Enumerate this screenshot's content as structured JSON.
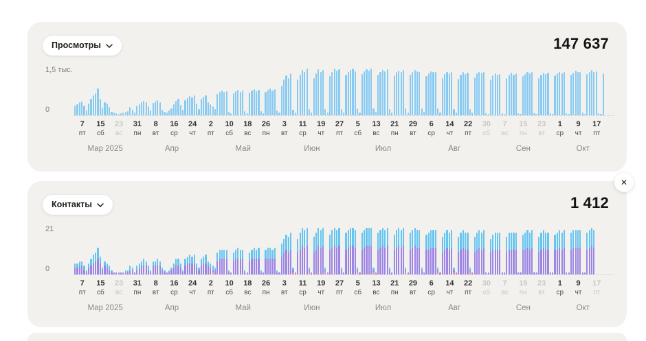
{
  "close_button": {
    "label": "✕"
  },
  "chart_data": [
    {
      "id": "views",
      "type": "bar",
      "metric_label": "Просмотры",
      "total_label": "147 637",
      "y_axis": {
        "max_label": "1,5 тыс.",
        "zero_label": "0",
        "max": 1500
      },
      "bar_color": "#87CAF3",
      "values": [
        320,
        360,
        410,
        440,
        300,
        160,
        380,
        520,
        640,
        700,
        860,
        540,
        240,
        420,
        380,
        260,
        120,
        90,
        70,
        40,
        60,
        90,
        110,
        140,
        260,
        180,
        90,
        310,
        360,
        420,
        470,
        430,
        280,
        150,
        390,
        450,
        480,
        420,
        180,
        120,
        80,
        160,
        220,
        350,
        470,
        520,
        330,
        170,
        480,
        560,
        610,
        580,
        640,
        380,
        190,
        520,
        590,
        630,
        410,
        360,
        280,
        200,
        680,
        750,
        800,
        740,
        780,
        120,
        60,
        700,
        770,
        820,
        760,
        800,
        130,
        70,
        720,
        790,
        840,
        780,
        820,
        140,
        70,
        740,
        810,
        860,
        800,
        830,
        150,
        80,
        950,
        1150,
        1280,
        1200,
        1350,
        180,
        80,
        1150,
        1300,
        1450,
        1380,
        1500,
        200,
        90,
        1200,
        1350,
        1480,
        1400,
        1460,
        190,
        80,
        1250,
        1400,
        1500,
        1430,
        1480,
        200,
        90,
        1300,
        1380,
        1450,
        1500,
        1420,
        210,
        90,
        1320,
        1420,
        1480,
        1440,
        1500,
        220,
        100,
        1300,
        1400,
        1460,
        1410,
        1470,
        200,
        90,
        1280,
        1380,
        1440,
        1400,
        1450,
        210,
        90,
        1310,
        1400,
        1460,
        1420,
        1380,
        220,
        100,
        1250,
        1350,
        1420,
        1380,
        1400,
        210,
        90,
        1200,
        1320,
        1400,
        1350,
        1380,
        200,
        80,
        1180,
        1300,
        1380,
        1330,
        1360,
        190,
        80,
        1220,
        1340,
        1400,
        1360,
        1390,
        60,
        40,
        1150,
        1280,
        1350,
        1300,
        1320,
        60,
        40,
        1200,
        1300,
        1360,
        1310,
        1340,
        70,
        40,
        1250,
        1320,
        1400,
        1350,
        1380,
        60,
        50,
        1200,
        1310,
        1370,
        1330,
        1360,
        70,
        40,
        1280,
        1350,
        1380,
        1340,
        1390,
        70,
        50,
        1300,
        1370,
        1430,
        1380,
        1400,
        80,
        50,
        1320,
        1390,
        1450,
        1400,
        1420,
        70,
        40,
        1340
      ],
      "ticks": [
        {
          "d": "7",
          "w": "пт",
          "i": 3
        },
        {
          "d": "15",
          "w": "сб",
          "i": 11
        },
        {
          "d": "23",
          "w": "вс",
          "i": 19,
          "muted": true
        },
        {
          "d": "31",
          "w": "пн",
          "i": 27
        },
        {
          "d": "8",
          "w": "вт",
          "i": 35
        },
        {
          "d": "16",
          "w": "ср",
          "i": 43
        },
        {
          "d": "24",
          "w": "чт",
          "i": 51
        },
        {
          "d": "2",
          "w": "пт",
          "i": 59
        },
        {
          "d": "10",
          "w": "сб",
          "i": 67
        },
        {
          "d": "18",
          "w": "вс",
          "i": 75
        },
        {
          "d": "26",
          "w": "пн",
          "i": 83
        },
        {
          "d": "3",
          "w": "вт",
          "i": 91
        },
        {
          "d": "11",
          "w": "ср",
          "i": 99
        },
        {
          "d": "19",
          "w": "чт",
          "i": 107
        },
        {
          "d": "27",
          "w": "пт",
          "i": 115
        },
        {
          "d": "5",
          "w": "сб",
          "i": 123
        },
        {
          "d": "13",
          "w": "вс",
          "i": 131
        },
        {
          "d": "21",
          "w": "пн",
          "i": 139
        },
        {
          "d": "29",
          "w": "вт",
          "i": 147
        },
        {
          "d": "6",
          "w": "ср",
          "i": 155
        },
        {
          "d": "14",
          "w": "чт",
          "i": 163
        },
        {
          "d": "22",
          "w": "пт",
          "i": 171
        },
        {
          "d": "30",
          "w": "сб",
          "i": 179,
          "muted": true
        },
        {
          "d": "7",
          "w": "вс",
          "i": 187,
          "muted": true
        },
        {
          "d": "15",
          "w": "пн",
          "i": 195,
          "muted": true
        },
        {
          "d": "23",
          "w": "вт",
          "i": 203,
          "muted": true
        },
        {
          "d": "1",
          "w": "ср",
          "i": 211
        },
        {
          "d": "9",
          "w": "чт",
          "i": 219
        },
        {
          "d": "17",
          "w": "пт",
          "i": 227
        }
      ],
      "months": [
        {
          "label": "Мар 2025",
          "i": 13
        },
        {
          "label": "Апр",
          "i": 42
        },
        {
          "label": "Май",
          "i": 73
        },
        {
          "label": "Июн",
          "i": 103
        },
        {
          "label": "Июл",
          "i": 134
        },
        {
          "label": "Авг",
          "i": 165
        },
        {
          "label": "Сен",
          "i": 195
        },
        {
          "label": "Окт",
          "i": 221
        }
      ]
    },
    {
      "id": "contacts",
      "type": "stacked_bar",
      "metric_label": "Контакты",
      "total_label": "1 412",
      "y_axis": {
        "max_label": "21",
        "zero_label": "0",
        "max": 21
      },
      "series": [
        {
          "name": "top-blue",
          "color": "#66C5F0",
          "values": [
            2,
            2,
            2,
            2,
            2,
            1,
            2,
            3,
            4,
            4,
            5,
            3,
            1,
            2,
            2,
            2,
            1,
            0,
            0,
            0,
            0,
            0,
            1,
            1,
            2,
            1,
            0,
            2,
            2,
            2,
            3,
            2,
            2,
            1,
            2,
            2,
            3,
            2,
            1,
            1,
            0,
            1,
            1,
            2,
            3,
            3,
            2,
            1,
            3,
            3,
            4,
            3,
            4,
            2,
            1,
            3,
            3,
            4,
            2,
            2,
            2,
            1,
            4,
            4,
            4,
            4,
            4,
            1,
            0,
            4,
            4,
            5,
            4,
            4,
            1,
            0,
            4,
            4,
            5,
            4,
            5,
            1,
            0,
            4,
            5,
            5,
            4,
            5,
            1,
            0,
            6,
            6,
            7,
            7,
            8,
            1,
            0,
            6,
            8,
            8,
            8,
            8,
            1,
            0,
            7,
            8,
            8,
            8,
            8,
            1,
            0,
            7,
            8,
            8,
            8,
            8,
            1,
            0,
            8,
            8,
            8,
            8,
            8,
            1,
            0,
            8,
            8,
            8,
            8,
            8,
            1,
            0,
            8,
            8,
            8,
            8,
            8,
            1,
            0,
            7,
            8,
            8,
            8,
            8,
            1,
            0,
            8,
            8,
            8,
            8,
            8,
            1,
            0,
            7,
            8,
            8,
            8,
            8,
            1,
            0,
            7,
            8,
            8,
            8,
            8,
            1,
            0,
            7,
            8,
            8,
            8,
            8,
            1,
            0,
            7,
            8,
            8,
            8,
            8,
            0,
            0,
            6,
            7,
            8,
            8,
            8,
            0,
            0,
            7,
            8,
            8,
            8,
            8,
            0,
            0,
            7,
            8,
            8,
            8,
            8,
            0,
            0,
            7,
            8,
            8,
            8,
            8,
            0,
            0,
            7,
            8,
            8,
            8,
            8,
            0,
            0,
            8,
            8,
            8,
            8,
            8,
            0,
            0,
            8,
            8,
            8,
            8,
            0,
            0,
            0,
            0
          ]
        },
        {
          "name": "bottom-purple",
          "color": "#9D85E5",
          "values": [
            3,
            3,
            4,
            4,
            2,
            1,
            3,
            4,
            5,
            6,
            7,
            5,
            2,
            4,
            3,
            2,
            1,
            1,
            1,
            1,
            1,
            1,
            1,
            1,
            2,
            2,
            1,
            2,
            3,
            4,
            4,
            4,
            2,
            1,
            4,
            4,
            4,
            4,
            2,
            1,
            1,
            1,
            2,
            3,
            4,
            4,
            3,
            1,
            4,
            5,
            5,
            5,
            5,
            3,
            2,
            4,
            5,
            5,
            4,
            3,
            2,
            2,
            6,
            7,
            7,
            7,
            7,
            1,
            1,
            6,
            7,
            7,
            7,
            7,
            1,
            1,
            6,
            7,
            7,
            7,
            7,
            1,
            1,
            7,
            7,
            7,
            7,
            7,
            1,
            1,
            8,
            10,
            11,
            10,
            11,
            2,
            1,
            10,
            11,
            13,
            12,
            13,
            2,
            1,
            10,
            11,
            13,
            12,
            13,
            2,
            1,
            11,
            12,
            13,
            12,
            13,
            2,
            1,
            11,
            12,
            13,
            13,
            12,
            2,
            1,
            11,
            12,
            13,
            13,
            13,
            2,
            1,
            11,
            12,
            13,
            12,
            13,
            2,
            1,
            11,
            12,
            13,
            12,
            13,
            2,
            1,
            11,
            12,
            13,
            12,
            12,
            2,
            1,
            11,
            11,
            12,
            12,
            12,
            2,
            1,
            10,
            11,
            12,
            11,
            12,
            2,
            1,
            10,
            11,
            12,
            11,
            11,
            2,
            1,
            10,
            11,
            12,
            11,
            12,
            1,
            1,
            10,
            11,
            11,
            11,
            11,
            1,
            1,
            10,
            11,
            11,
            11,
            11,
            1,
            1,
            11,
            11,
            12,
            11,
            12,
            1,
            1,
            10,
            11,
            12,
            11,
            11,
            1,
            1,
            11,
            11,
            12,
            11,
            12,
            1,
            1,
            11,
            12,
            12,
            12,
            12,
            1,
            1,
            11,
            12,
            13,
            12,
            0,
            0,
            0,
            0
          ]
        }
      ],
      "accent": {
        "color": "#F2948F",
        "day_indices": [
          60,
          67,
          81,
          95,
          102,
          109,
          123,
          130,
          144,
          158,
          165,
          172
        ]
      },
      "ticks": [
        {
          "d": "7",
          "w": "пт",
          "i": 3
        },
        {
          "d": "15",
          "w": "сб",
          "i": 11
        },
        {
          "d": "23",
          "w": "вс",
          "i": 19,
          "muted": true
        },
        {
          "d": "31",
          "w": "пн",
          "i": 27
        },
        {
          "d": "8",
          "w": "вт",
          "i": 35
        },
        {
          "d": "16",
          "w": "ср",
          "i": 43
        },
        {
          "d": "24",
          "w": "чт",
          "i": 51
        },
        {
          "d": "2",
          "w": "пт",
          "i": 59
        },
        {
          "d": "10",
          "w": "сб",
          "i": 67
        },
        {
          "d": "18",
          "w": "вс",
          "i": 75
        },
        {
          "d": "26",
          "w": "пн",
          "i": 83
        },
        {
          "d": "3",
          "w": "вт",
          "i": 91
        },
        {
          "d": "11",
          "w": "ср",
          "i": 99
        },
        {
          "d": "19",
          "w": "чт",
          "i": 107
        },
        {
          "d": "27",
          "w": "пт",
          "i": 115
        },
        {
          "d": "5",
          "w": "сб",
          "i": 123
        },
        {
          "d": "13",
          "w": "вс",
          "i": 131
        },
        {
          "d": "21",
          "w": "пн",
          "i": 139
        },
        {
          "d": "29",
          "w": "вт",
          "i": 147
        },
        {
          "d": "6",
          "w": "ср",
          "i": 155
        },
        {
          "d": "14",
          "w": "чт",
          "i": 163
        },
        {
          "d": "22",
          "w": "пт",
          "i": 171
        },
        {
          "d": "30",
          "w": "сб",
          "i": 179,
          "muted": true
        },
        {
          "d": "7",
          "w": "вс",
          "i": 187,
          "muted": true
        },
        {
          "d": "15",
          "w": "пн",
          "i": 195,
          "muted": true
        },
        {
          "d": "23",
          "w": "вт",
          "i": 203,
          "muted": true
        },
        {
          "d": "1",
          "w": "ср",
          "i": 211
        },
        {
          "d": "9",
          "w": "чт",
          "i": 219
        },
        {
          "d": "17",
          "w": "пт",
          "i": 227,
          "muted": true
        }
      ],
      "months": [
        {
          "label": "Мар 2025",
          "i": 13
        },
        {
          "label": "Апр",
          "i": 42
        },
        {
          "label": "Май",
          "i": 73
        },
        {
          "label": "Июн",
          "i": 103
        },
        {
          "label": "Июл",
          "i": 134
        },
        {
          "label": "Авг",
          "i": 165
        },
        {
          "label": "Сен",
          "i": 195
        },
        {
          "label": "Окт",
          "i": 221
        }
      ]
    }
  ]
}
